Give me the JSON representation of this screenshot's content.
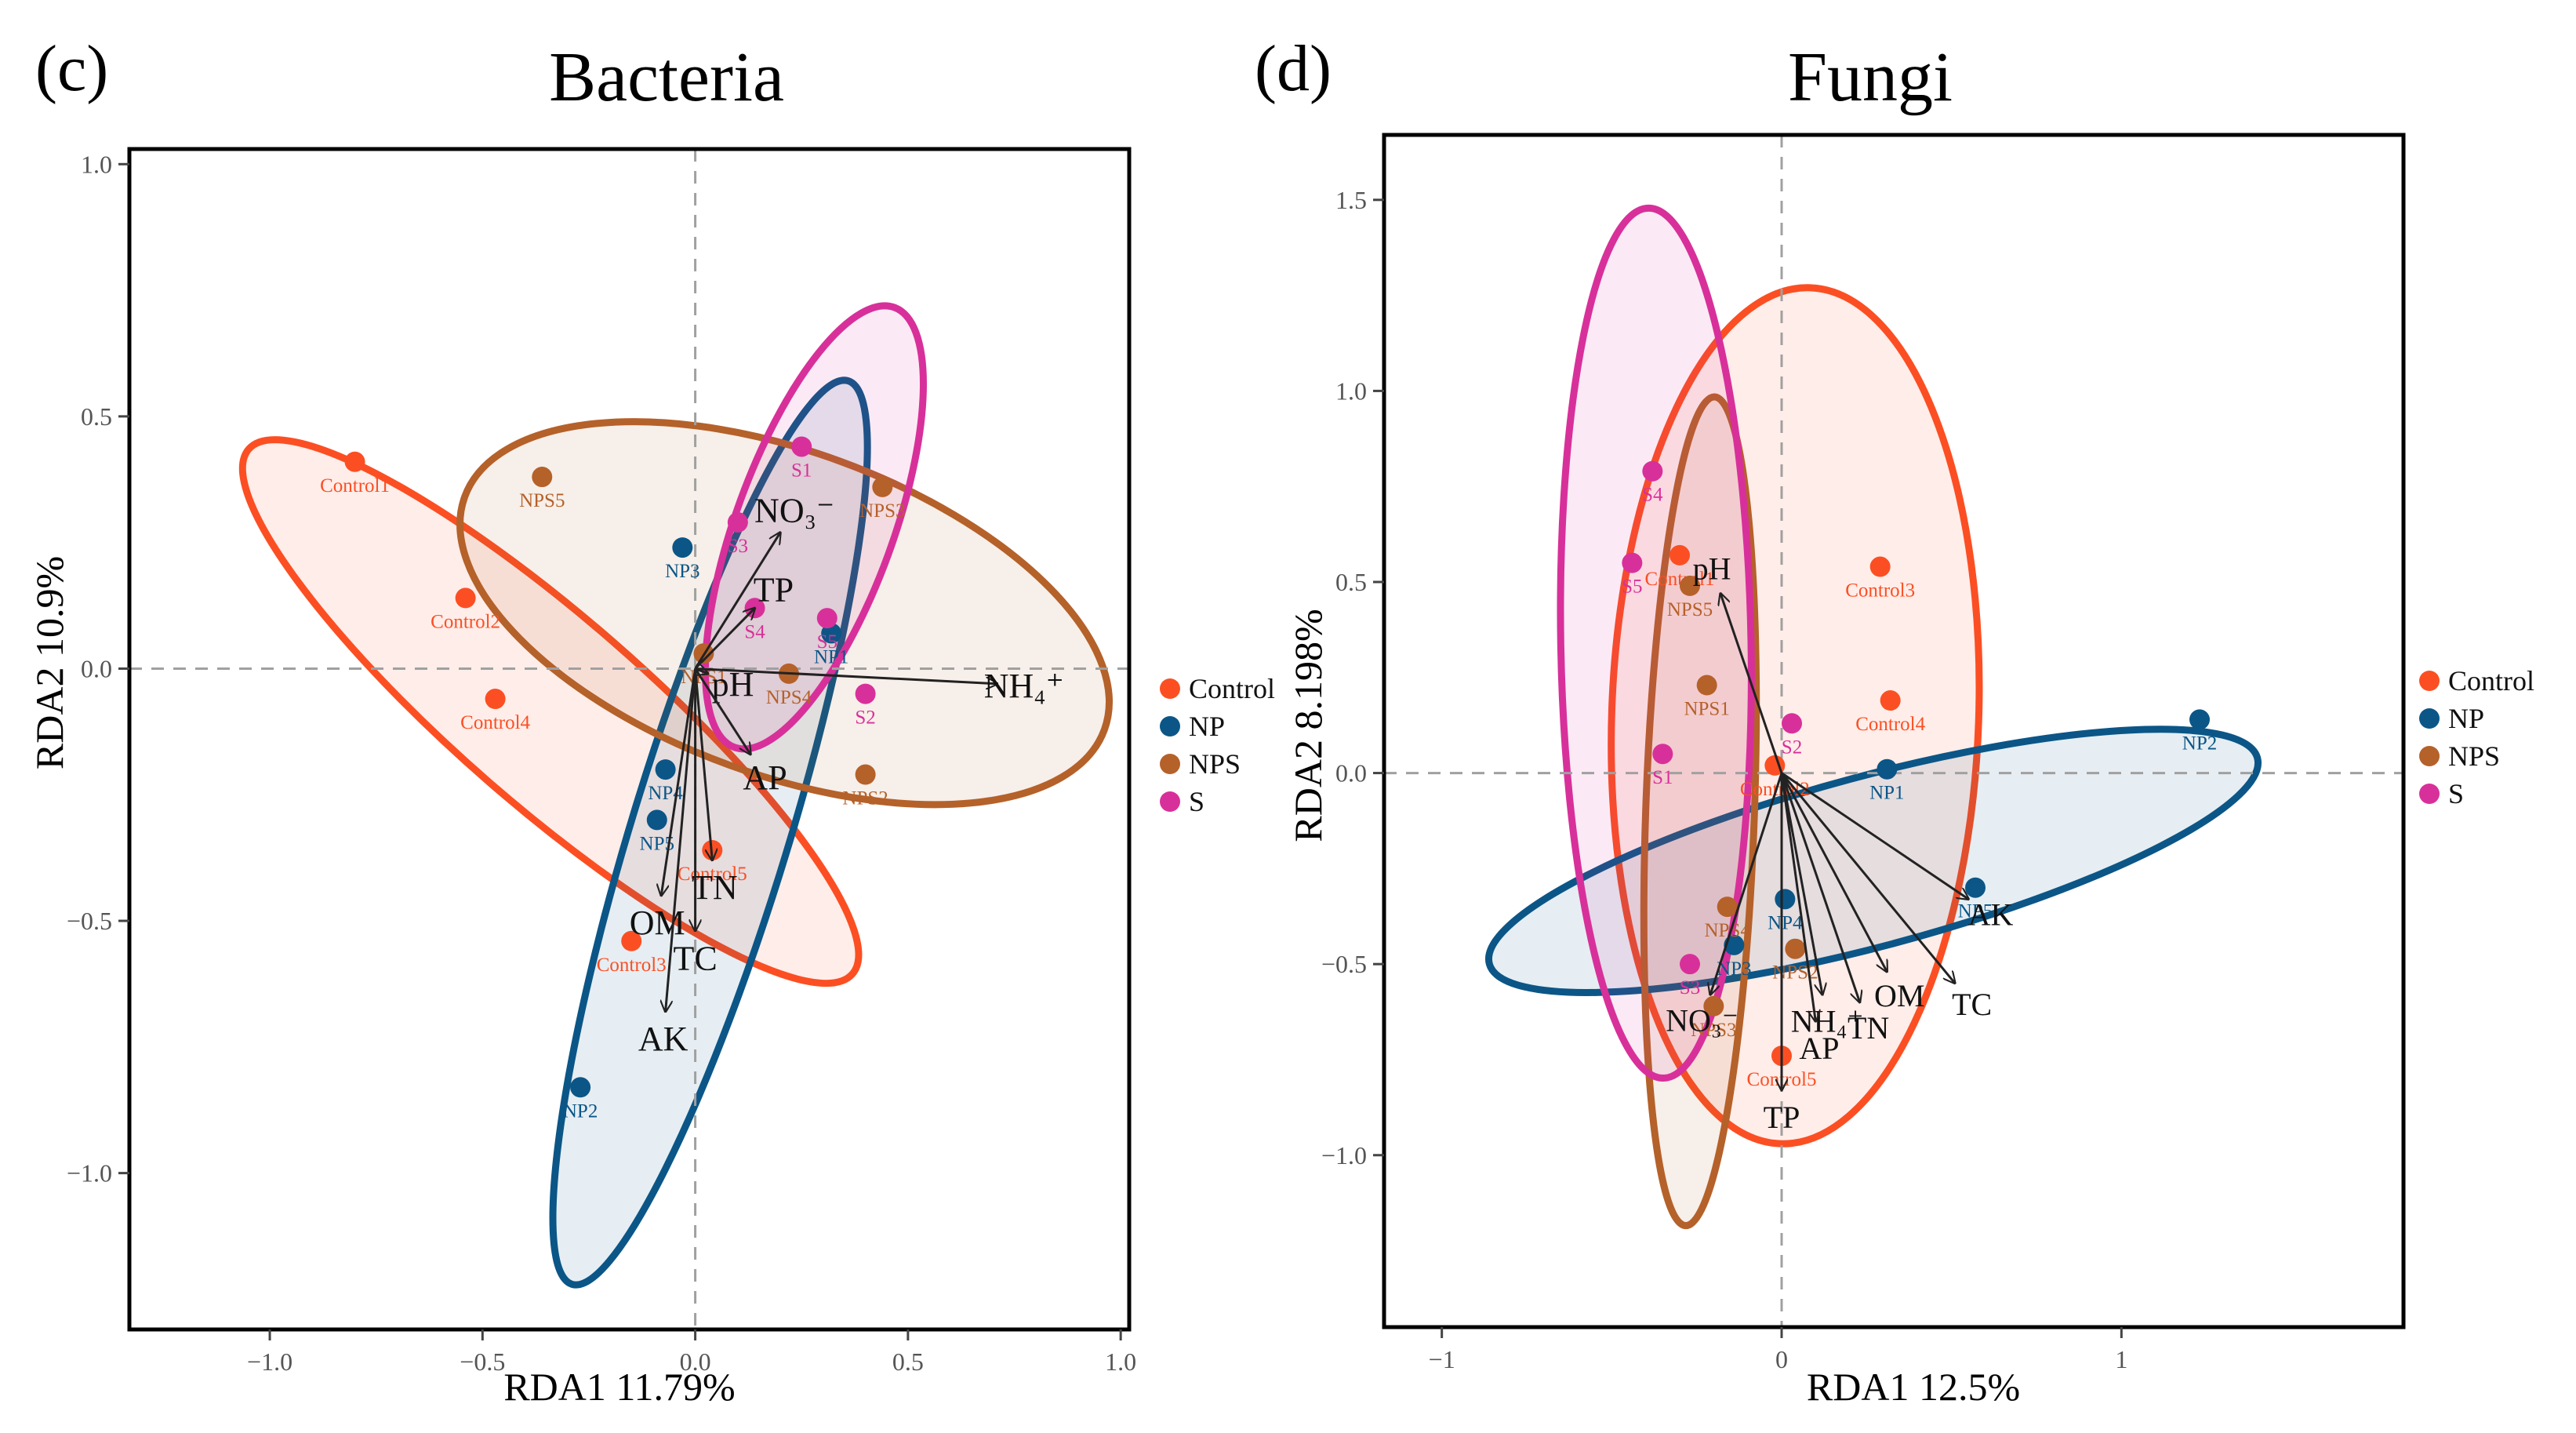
{
  "colors": {
    "Control": "#fb4f23",
    "NP": "#0b5687",
    "NPS": "#b5612a",
    "S": "#d8309a",
    "axis": "#000000",
    "dashed": "#a0a0a0"
  },
  "legend": {
    "entries": [
      "Control",
      "NP",
      "NPS",
      "S"
    ]
  },
  "chart_data": [
    {
      "type": "scatter",
      "panel_label": "(c)",
      "title": "Bacteria",
      "xlabel": "RDA1 11.79%",
      "ylabel": "RDA2 10.9%",
      "xlim": [
        -1.33,
        1.02
      ],
      "ylim": [
        -1.31,
        1.03
      ],
      "xticks": [
        -1.0,
        -0.5,
        0.0,
        0.5,
        1.0
      ],
      "xtick_labels": [
        "−1.0",
        "−0.5",
        "0.0",
        "0.5",
        "1.0"
      ],
      "yticks": [
        -1.0,
        -0.5,
        0.0,
        0.5,
        1.0
      ],
      "ytick_labels": [
        "−1.0",
        "−0.5",
        "0.0",
        "0.5",
        "1.0"
      ],
      "ellipses": [
        {
          "group": "Control",
          "cx": -0.34,
          "cy": -0.085,
          "rx": 0.94,
          "ry": 0.22,
          "angle": -41
        },
        {
          "group": "NP",
          "cx": 0.035,
          "cy": -0.325,
          "rx": 1.11,
          "ry": 0.185,
          "angle": 73
        },
        {
          "group": "NPS",
          "cx": 0.21,
          "cy": 0.11,
          "rx": 0.8,
          "ry": 0.38,
          "angle": -20
        },
        {
          "group": "S",
          "cx": 0.28,
          "cy": 0.28,
          "rx": 0.55,
          "ry": 0.185,
          "angle": 70
        }
      ],
      "points": [
        {
          "label": "Control1",
          "group": "Control",
          "x": -0.8,
          "y": 0.41
        },
        {
          "label": "Control2",
          "group": "Control",
          "x": -0.54,
          "y": 0.14
        },
        {
          "label": "Control4",
          "group": "Control",
          "x": -0.47,
          "y": -0.06
        },
        {
          "label": "Control3",
          "group": "Control",
          "x": -0.15,
          "y": -0.54
        },
        {
          "label": "Control5",
          "group": "Control",
          "x": 0.04,
          "y": -0.36
        },
        {
          "label": "NP2",
          "group": "NP",
          "x": -0.27,
          "y": -0.83
        },
        {
          "label": "NP5",
          "group": "NP",
          "x": -0.09,
          "y": -0.3
        },
        {
          "label": "NP4",
          "group": "NP",
          "x": -0.07,
          "y": -0.2
        },
        {
          "label": "NP3",
          "group": "NP",
          "x": -0.03,
          "y": 0.24
        },
        {
          "label": "NP1",
          "group": "NP",
          "x": 0.32,
          "y": 0.07
        },
        {
          "label": "NPS5",
          "group": "NPS",
          "x": -0.36,
          "y": 0.38
        },
        {
          "label": "NPS1",
          "group": "NPS",
          "x": 0.02,
          "y": 0.03
        },
        {
          "label": "NPS4",
          "group": "NPS",
          "x": 0.22,
          "y": -0.01
        },
        {
          "label": "NPS2",
          "group": "NPS",
          "x": 0.4,
          "y": -0.21
        },
        {
          "label": "NPS3",
          "group": "NPS",
          "x": 0.44,
          "y": 0.36
        },
        {
          "label": "S3",
          "group": "S",
          "x": 0.1,
          "y": 0.29
        },
        {
          "label": "S4",
          "group": "S",
          "x": 0.14,
          "y": 0.12
        },
        {
          "label": "S1",
          "group": "S",
          "x": 0.25,
          "y": 0.44
        },
        {
          "label": "S5",
          "group": "S",
          "x": 0.31,
          "y": 0.1
        },
        {
          "label": "S2",
          "group": "S",
          "x": 0.4,
          "y": -0.05
        }
      ],
      "arrows": [
        {
          "label": "NO₃⁻",
          "x": 0.2,
          "y": 0.27
        },
        {
          "label": "TP",
          "x": 0.14,
          "y": 0.12
        },
        {
          "label": "NH₄⁺",
          "x": 0.71,
          "y": -0.03
        },
        {
          "label": "pH",
          "x": 0.03,
          "y": -0.01
        },
        {
          "label": "AP",
          "x": 0.13,
          "y": -0.17
        },
        {
          "label": "TN",
          "x": 0.04,
          "y": -0.38
        },
        {
          "label": "OM",
          "x": -0.08,
          "y": -0.45
        },
        {
          "label": "TC",
          "x": 0.0,
          "y": -0.52
        },
        {
          "label": "AK",
          "x": -0.07,
          "y": -0.68
        }
      ]
    },
    {
      "type": "scatter",
      "panel_label": "(d)",
      "title": "Fungi",
      "xlabel": "RDA1 12.5%",
      "ylabel": "RDA2 8.198%",
      "xlim": [
        -1.17,
        1.83
      ],
      "ylim": [
        -1.45,
        1.67
      ],
      "xticks": [
        -1,
        0,
        1
      ],
      "xtick_labels": [
        "−1",
        "0",
        "1"
      ],
      "yticks": [
        -1.0,
        -0.5,
        0.0,
        0.5,
        1.0,
        1.5
      ],
      "ytick_labels": [
        "−1.0",
        "−0.5",
        "0.0",
        "0.5",
        "1.0",
        "1.5"
      ],
      "ellipses": [
        {
          "group": "Control",
          "cx": 0.04,
          "cy": 0.15,
          "rx": 1.26,
          "ry": 0.54,
          "angle": 88
        },
        {
          "group": "NP",
          "cx": 0.27,
          "cy": -0.23,
          "rx": 1.17,
          "ry": 0.25,
          "angle": 15
        },
        {
          "group": "NPS",
          "cx": -0.24,
          "cy": -0.1,
          "rx": 1.22,
          "ry": 0.16,
          "angle": 88
        },
        {
          "group": "S",
          "cx": -0.37,
          "cy": 0.34,
          "rx": 1.28,
          "ry": 0.28,
          "angle": 91
        }
      ],
      "points": [
        {
          "label": "Control1",
          "group": "Control",
          "x": -0.3,
          "y": 0.57
        },
        {
          "label": "Control3",
          "group": "Control",
          "x": 0.29,
          "y": 0.54
        },
        {
          "label": "Control4",
          "group": "Control",
          "x": 0.32,
          "y": 0.19
        },
        {
          "label": "Control2",
          "group": "Control",
          "x": -0.02,
          "y": 0.02
        },
        {
          "label": "Control5",
          "group": "Control",
          "x": 0.0,
          "y": -0.74
        },
        {
          "label": "NP2",
          "group": "NP",
          "x": 1.23,
          "y": 0.14
        },
        {
          "label": "NP1",
          "group": "NP",
          "x": 0.31,
          "y": 0.01
        },
        {
          "label": "NP5",
          "group": "NP",
          "x": 0.57,
          "y": -0.3
        },
        {
          "label": "NP4",
          "group": "NP",
          "x": 0.01,
          "y": -0.33
        },
        {
          "label": "NP3",
          "group": "NP",
          "x": -0.14,
          "y": -0.45
        },
        {
          "label": "NPS5",
          "group": "NPS",
          "x": -0.27,
          "y": 0.49
        },
        {
          "label": "NPS1",
          "group": "NPS",
          "x": -0.22,
          "y": 0.23
        },
        {
          "label": "NPS4",
          "group": "NPS",
          "x": -0.16,
          "y": -0.35
        },
        {
          "label": "NPS2",
          "group": "NPS",
          "x": 0.04,
          "y": -0.46
        },
        {
          "label": "NPS3",
          "group": "NPS",
          "x": -0.2,
          "y": -0.61
        },
        {
          "label": "S4",
          "group": "S",
          "x": -0.38,
          "y": 0.79
        },
        {
          "label": "S5",
          "group": "S",
          "x": -0.44,
          "y": 0.55
        },
        {
          "label": "S1",
          "group": "S",
          "x": -0.35,
          "y": 0.05
        },
        {
          "label": "S2",
          "group": "S",
          "x": 0.03,
          "y": 0.13
        },
        {
          "label": "S3",
          "group": "S",
          "x": -0.27,
          "y": -0.5
        }
      ],
      "arrows": [
        {
          "label": "pH",
          "x": -0.18,
          "y": 0.47
        },
        {
          "label": "AK",
          "x": 0.55,
          "y": -0.33
        },
        {
          "label": "TC",
          "x": 0.51,
          "y": -0.55
        },
        {
          "label": "OM",
          "x": 0.31,
          "y": -0.52
        },
        {
          "label": "TN",
          "x": 0.23,
          "y": -0.6
        },
        {
          "label": "NH₄⁺",
          "x": 0.12,
          "y": -0.58
        },
        {
          "label": "AP",
          "x": 0.1,
          "y": -0.65
        },
        {
          "label": "NO₃⁻",
          "x": -0.21,
          "y": -0.58
        },
        {
          "label": "TP",
          "x": 0.0,
          "y": -0.83
        }
      ]
    }
  ]
}
